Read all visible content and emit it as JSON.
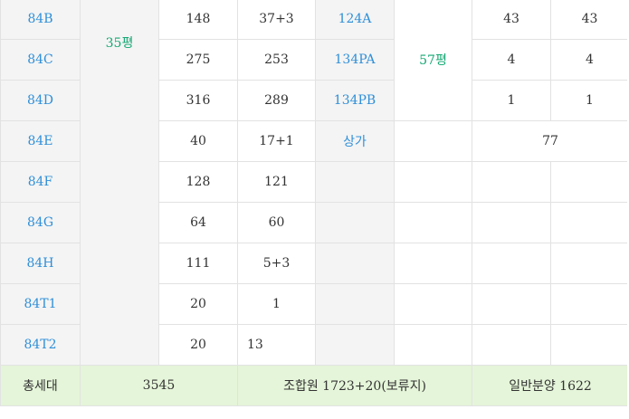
{
  "rows": [
    {
      "type": "84B",
      "total": "148",
      "member": "37+3",
      "type2": "124A",
      "total2": "43",
      "member2": "43"
    },
    {
      "type": "84C",
      "total": "275",
      "member": "253",
      "type2": "134PA",
      "total2": "4",
      "member2": "4"
    },
    {
      "type": "84D",
      "total": "316",
      "member": "289",
      "type2": "134PB",
      "total2": "1",
      "member2": "1"
    },
    {
      "type": "84E",
      "total": "40",
      "member": "17+1",
      "type2": "상가",
      "extra": "77"
    },
    {
      "type": "84F",
      "total": "128",
      "member": "121"
    },
    {
      "type": "84G",
      "total": "64",
      "member": "60"
    },
    {
      "type": "84H",
      "total": "111",
      "member": "5+3"
    },
    {
      "type": "84T1",
      "total": "20",
      "member": "1"
    },
    {
      "type": "84T2",
      "total": "20",
      "member": "13"
    }
  ],
  "group_35": "35평",
  "group_57": "57평",
  "footer": {
    "label": "총세대",
    "total": "3545",
    "member": "조합원 1723+20(보류지)",
    "general": "일반분양 1622"
  }
}
